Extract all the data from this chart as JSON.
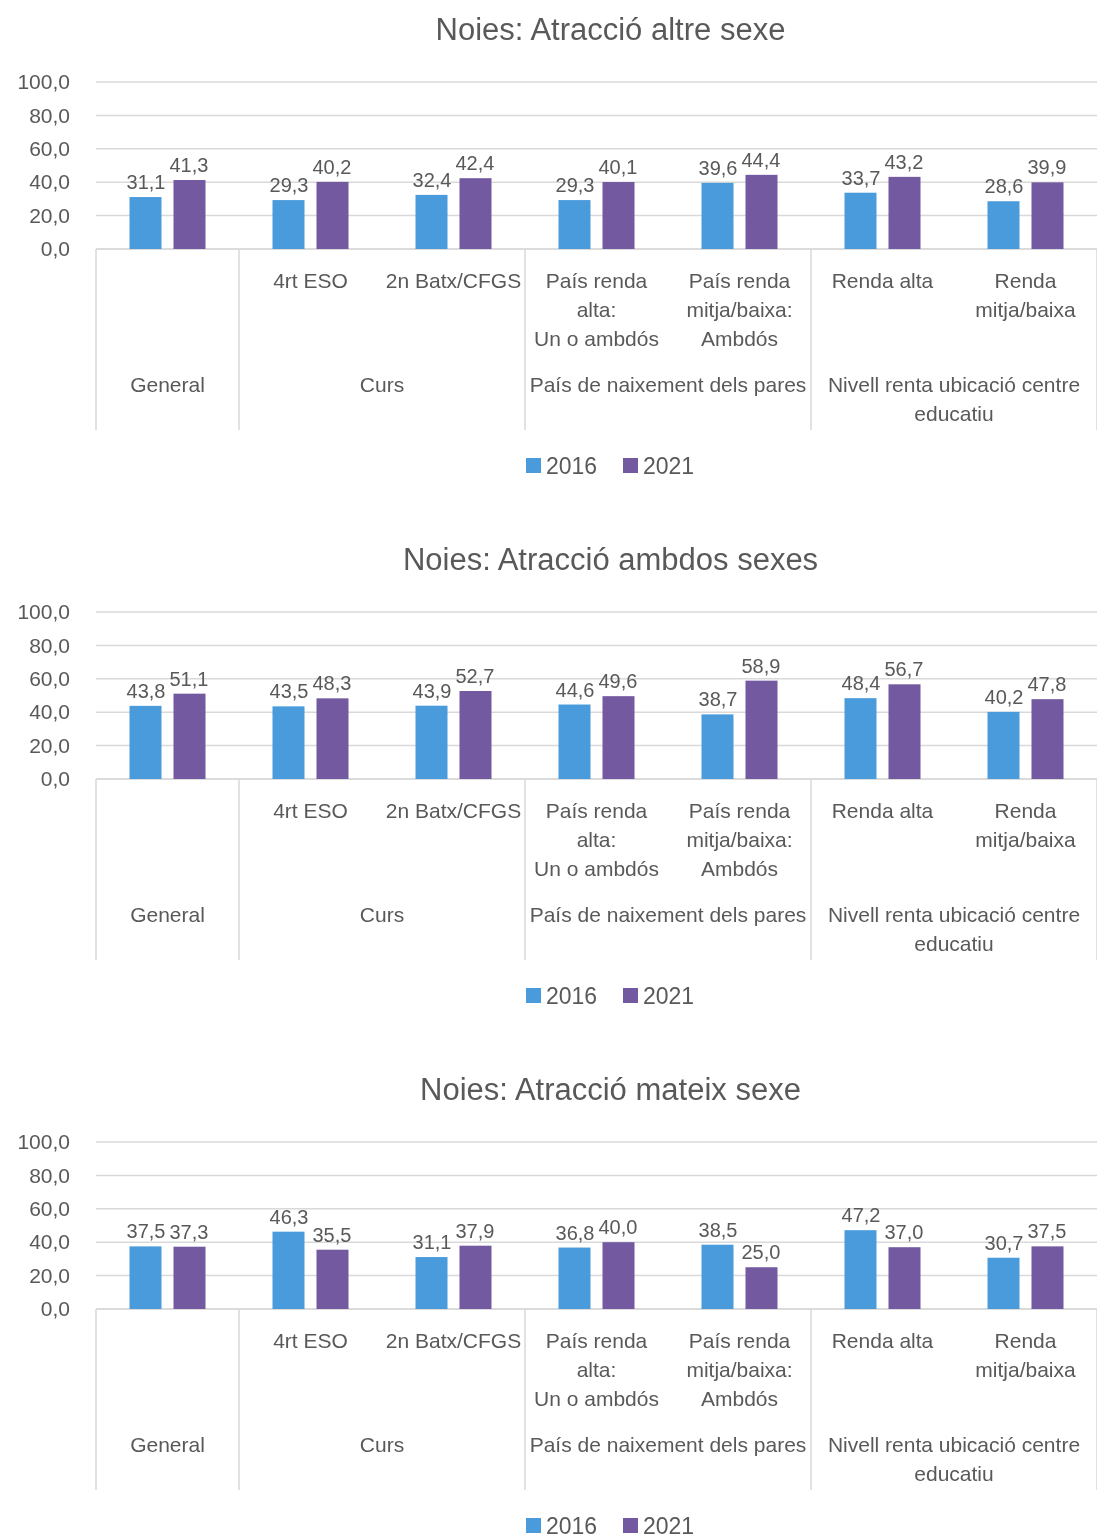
{
  "chart_data": [
    {
      "type": "bar",
      "title": "Noies: Atracció altre sexe",
      "categories": [
        null,
        "4rt ESO",
        "2n Batx/CFGS",
        "País renda alta:\nUn o ambdós",
        "País renda mitja/baixa:\nAmbdós",
        "Renda alta",
        "Renda mitja/baixa"
      ],
      "annotations": [
        "General",
        "Curs",
        "País de naixement dels pares",
        "Nivell renta ubicació centre educatiu"
      ],
      "series": [
        {
          "name": "2016",
          "color": "#4a9bdc",
          "values": [
            31.1,
            29.3,
            32.4,
            29.3,
            39.6,
            33.7,
            28.6
          ],
          "value_labels": [
            "31,1",
            "29,3",
            "32,4",
            "29,3",
            "39,6",
            "33,7",
            "28,6"
          ]
        },
        {
          "name": "2021",
          "color": "#7259a0",
          "values": [
            41.3,
            40.2,
            42.4,
            40.1,
            44.4,
            43.2,
            39.9
          ],
          "value_labels": [
            "41,3",
            "40,2",
            "42,4",
            "40,1",
            "44,4",
            "43,2",
            "39,9"
          ]
        }
      ],
      "ylim": [
        0,
        100
      ],
      "yticks": [
        {
          "value": 0,
          "label": "0,0"
        },
        {
          "value": 20,
          "label": "20,0"
        },
        {
          "value": 40,
          "label": "40,0"
        },
        {
          "value": 60,
          "label": "60,0"
        },
        {
          "value": 80,
          "label": "80,0"
        },
        {
          "value": 100,
          "label": "100,0"
        }
      ],
      "grid": "y",
      "legend": "bottom"
    },
    {
      "type": "bar",
      "title": "Noies: Atracció ambdos sexes",
      "categories": [
        null,
        "4rt ESO",
        "2n Batx/CFGS",
        "País renda alta:\nUn o ambdós",
        "País renda mitja/baixa:\nAmbdós",
        "Renda alta",
        "Renda mitja/baixa"
      ],
      "annotations": [
        "General",
        "Curs",
        "País de naixement dels pares",
        "Nivell renta ubicació centre educatiu"
      ],
      "series": [
        {
          "name": "2016",
          "color": "#4a9bdc",
          "values": [
            43.8,
            43.5,
            43.9,
            44.6,
            38.7,
            48.4,
            40.2
          ],
          "value_labels": [
            "43,8",
            "43,5",
            "43,9",
            "44,6",
            "38,7",
            "48,4",
            "40,2"
          ]
        },
        {
          "name": "2021",
          "color": "#7259a0",
          "values": [
            51.1,
            48.3,
            52.7,
            49.6,
            58.9,
            56.7,
            47.8
          ],
          "value_labels": [
            "51,1",
            "48,3",
            "52,7",
            "49,6",
            "58,9",
            "56,7",
            "47,8"
          ]
        }
      ],
      "ylim": [
        0,
        100
      ],
      "yticks": [
        {
          "value": 0,
          "label": "0,0"
        },
        {
          "value": 20,
          "label": "20,0"
        },
        {
          "value": 40,
          "label": "40,0"
        },
        {
          "value": 60,
          "label": "60,0"
        },
        {
          "value": 80,
          "label": "80,0"
        },
        {
          "value": 100,
          "label": "100,0"
        }
      ],
      "grid": "y",
      "legend": "bottom"
    },
    {
      "type": "bar",
      "title": "Noies: Atracció mateix sexe",
      "categories": [
        null,
        "4rt ESO",
        "2n Batx/CFGS",
        "País renda alta:\nUn o ambdós",
        "País renda mitja/baixa:\nAmbdós",
        "Renda alta",
        "Renda mitja/baixa"
      ],
      "annotations": [
        "General",
        "Curs",
        "País de naixement dels pares",
        "Nivell renta ubicació centre educatiu"
      ],
      "series": [
        {
          "name": "2016",
          "color": "#4a9bdc",
          "values": [
            37.5,
            46.3,
            31.1,
            36.8,
            38.5,
            47.2,
            30.7
          ],
          "value_labels": [
            "37,5",
            "46,3",
            "31,1",
            "36,8",
            "38,5",
            "47,2",
            "30,7"
          ]
        },
        {
          "name": "2021",
          "color": "#7259a0",
          "values": [
            37.3,
            35.5,
            37.9,
            40.0,
            25.0,
            37.0,
            37.5
          ],
          "value_labels": [
            "37,3",
            "35,5",
            "37,9",
            "40,0",
            "25,0",
            "37,0",
            "37,5"
          ]
        }
      ],
      "ylim": [
        0,
        100
      ],
      "yticks": [
        {
          "value": 0,
          "label": "0,0"
        },
        {
          "value": 20,
          "label": "20,0"
        },
        {
          "value": 40,
          "label": "40,0"
        },
        {
          "value": 60,
          "label": "60,0"
        },
        {
          "value": 80,
          "label": "80,0"
        },
        {
          "value": 100,
          "label": "100,0"
        }
      ],
      "grid": "y",
      "legend": "bottom"
    }
  ]
}
